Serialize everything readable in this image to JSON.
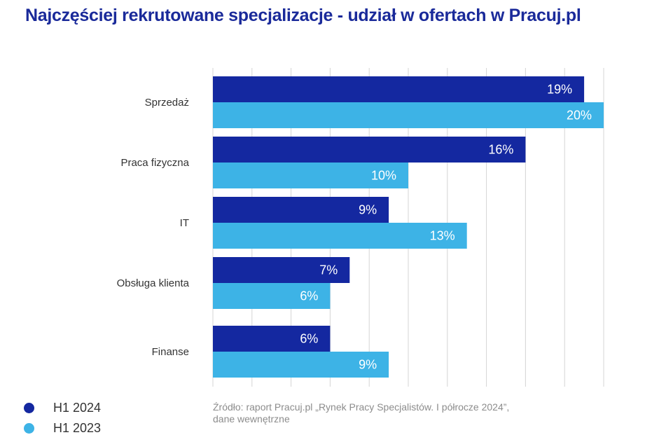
{
  "title": "Najczęściej rekrutowane specjalizacje - udział w ofertach w Pracuj.pl",
  "source": {
    "line1": "Źródło: raport Pracuj.pl „Rynek Pracy Specjalistów. I półrocze 2024”,",
    "line2": "dane wewnętrzne"
  },
  "legend": [
    {
      "label": "H1 2024",
      "color": "#1428a0"
    },
    {
      "label": "H1 2023",
      "color": "#3db3e6"
    }
  ],
  "chart_data": {
    "type": "bar",
    "orientation": "horizontal",
    "categories": [
      "Sprzedaż",
      "Praca fizyczna",
      "IT",
      "Obsługa klienta",
      "Finanse"
    ],
    "series": [
      {
        "name": "H1 2024",
        "values": [
          19,
          16,
          9,
          7,
          6
        ],
        "labels": [
          "19%",
          "16%",
          "9%",
          "7%",
          "6%"
        ],
        "color": "#1428a0"
      },
      {
        "name": "H1 2023",
        "values": [
          20,
          10,
          13,
          6,
          9
        ],
        "labels": [
          "20%",
          "10%",
          "13%",
          "6%",
          "9%"
        ],
        "color": "#3db3e6"
      }
    ],
    "xlim": [
      0,
      20
    ],
    "grid": true,
    "legend_position": "bottom-left"
  }
}
